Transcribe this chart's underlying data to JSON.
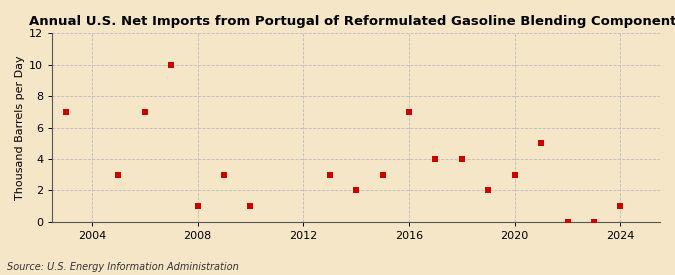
{
  "title": "Annual U.S. Net Imports from Portugal of Reformulated Gasoline Blending Components",
  "ylabel": "Thousand Barrels per Day",
  "source": "Source: U.S. Energy Information Administration",
  "background_color": "#f5e6c8",
  "plot_bg_color": "#fdf5e4",
  "years": [
    2003,
    2005,
    2006,
    2007,
    2008,
    2009,
    2010,
    2013,
    2014,
    2015,
    2016,
    2017,
    2018,
    2019,
    2020,
    2021,
    2022,
    2023,
    2024
  ],
  "values": [
    7,
    3,
    7,
    10,
    1,
    3,
    1,
    3,
    2,
    3,
    7,
    4,
    4,
    2,
    3,
    5,
    0,
    0,
    1
  ],
  "marker_color": "#cc0000",
  "marker_size": 20,
  "xlim": [
    2002.5,
    2025.5
  ],
  "ylim": [
    0,
    12
  ],
  "xticks": [
    2004,
    2008,
    2012,
    2016,
    2020,
    2024
  ],
  "yticks": [
    0,
    2,
    4,
    6,
    8,
    10,
    12
  ],
  "grid_color": "#bbbbbb",
  "grid_style": "--",
  "title_fontsize": 9.5,
  "ylabel_fontsize": 8,
  "tick_fontsize": 8,
  "source_fontsize": 7
}
